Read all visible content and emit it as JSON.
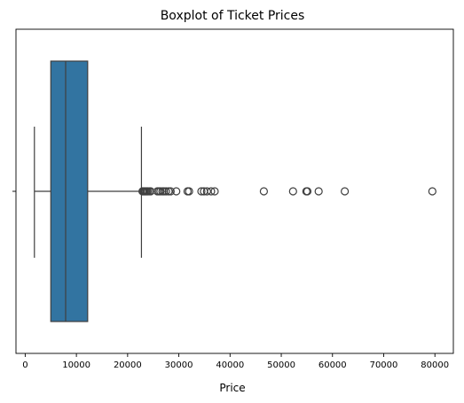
{
  "chart_data": {
    "type": "box",
    "title": "Boxplot of Ticket Prices",
    "xlabel": "Price",
    "ylabel": "",
    "orientation": "horizontal",
    "xlim": [
      -1800,
      83600
    ],
    "xticks": [
      0,
      10000,
      20000,
      30000,
      40000,
      50000,
      60000,
      70000,
      80000
    ],
    "xtick_labels": [
      "0",
      "10000",
      "20000",
      "30000",
      "40000",
      "50000",
      "60000",
      "70000",
      "80000"
    ],
    "grid": false,
    "series": [
      {
        "whisker_low": 1800,
        "q1": 5000,
        "median": 7900,
        "q3": 12200,
        "whisker_high": 22700,
        "fliers": [
          22900,
          23100,
          23300,
          23500,
          23700,
          23900,
          24200,
          24500,
          25800,
          26100,
          26400,
          26800,
          27100,
          27500,
          28000,
          28400,
          29500,
          31700,
          32000,
          34400,
          34900,
          35500,
          36300,
          37000,
          46600,
          52300,
          54900,
          55100,
          57300,
          62400,
          79500
        ],
        "color": "#3274a1"
      }
    ]
  }
}
